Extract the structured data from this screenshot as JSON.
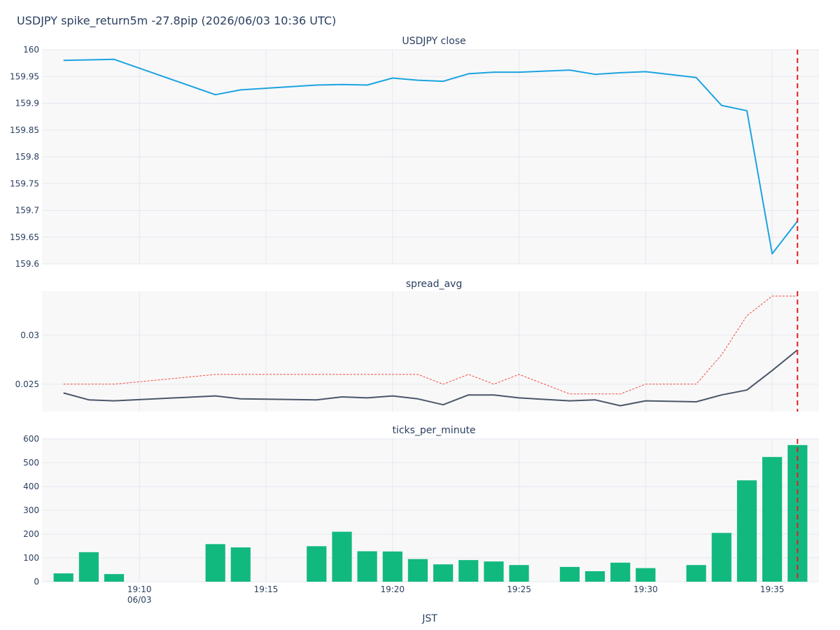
{
  "title": "USDJPY spike_return5m -27.8pip (2026/06/03 10:36 UTC)",
  "chart_data": {
    "type": "line",
    "xlabel": "JST",
    "x_minutes": [
      "19:07",
      "19:08",
      "19:09",
      "19:13",
      "19:14",
      "19:17",
      "19:18",
      "19:19",
      "19:20",
      "19:21",
      "19:22",
      "19:23",
      "19:24",
      "19:25",
      "19:27",
      "19:28",
      "19:29",
      "19:30",
      "19:32",
      "19:33",
      "19:34",
      "19:35",
      "19:36"
    ],
    "x_ticks": [
      "19:10",
      "19:15",
      "19:20",
      "19:25",
      "19:30",
      "19:35"
    ],
    "x_tick_date": "06/03",
    "event_marker_time": "19:36",
    "marker_color": "#e02020",
    "panels": [
      {
        "title": "USDJPY close",
        "type": "line",
        "ylim": [
          159.6,
          160
        ],
        "yticks": [
          "160",
          "159.95",
          "159.9",
          "159.85",
          "159.8",
          "159.75",
          "159.7",
          "159.65",
          "159.6"
        ],
        "series": [
          {
            "color": "#1ca3e0",
            "dash": "solid",
            "points": [
              [
                "19:07",
                159.98
              ],
              [
                "19:09",
                159.982
              ],
              [
                "19:13",
                159.916
              ],
              [
                "19:14",
                159.925
              ],
              [
                "19:17",
                159.934
              ],
              [
                "19:18",
                159.935
              ],
              [
                "19:19",
                159.934
              ],
              [
                "19:20",
                159.947
              ],
              [
                "19:21",
                159.943
              ],
              [
                "19:22",
                159.941
              ],
              [
                "19:23",
                159.955
              ],
              [
                "19:24",
                159.958
              ],
              [
                "19:25",
                159.958
              ],
              [
                "19:27",
                159.962
              ],
              [
                "19:28",
                159.954
              ],
              [
                "19:29",
                159.957
              ],
              [
                "19:30",
                159.959
              ],
              [
                "19:32",
                159.948
              ],
              [
                "19:33",
                159.896
              ],
              [
                "19:34",
                159.886
              ],
              [
                "19:35",
                159.619
              ],
              [
                "19:36",
                159.68
              ]
            ]
          }
        ]
      },
      {
        "title": "spread_avg",
        "type": "line",
        "ylim": [
          0.0222,
          0.0345
        ],
        "yticks": [
          "0.03",
          "0.025"
        ],
        "series": [
          {
            "color": "#4a5668",
            "dash": "solid",
            "points": [
              [
                "19:07",
                0.0241
              ],
              [
                "19:08",
                0.0234
              ],
              [
                "19:09",
                0.0233
              ],
              [
                "19:13",
                0.0238
              ],
              [
                "19:14",
                0.0235
              ],
              [
                "19:17",
                0.0234
              ],
              [
                "19:18",
                0.0237
              ],
              [
                "19:19",
                0.0236
              ],
              [
                "19:20",
                0.0238
              ],
              [
                "19:21",
                0.0235
              ],
              [
                "19:22",
                0.0229
              ],
              [
                "19:23",
                0.0239
              ],
              [
                "19:24",
                0.0239
              ],
              [
                "19:25",
                0.0236
              ],
              [
                "19:27",
                0.0233
              ],
              [
                "19:28",
                0.0234
              ],
              [
                "19:29",
                0.0228
              ],
              [
                "19:30",
                0.0233
              ],
              [
                "19:32",
                0.0232
              ],
              [
                "19:33",
                0.0239
              ],
              [
                "19:34",
                0.0244
              ],
              [
                "19:35",
                0.0264
              ],
              [
                "19:36",
                0.0285
              ]
            ]
          },
          {
            "color": "#f04a3c",
            "dash": "dotted",
            "points": [
              [
                "19:07",
                0.025
              ],
              [
                "19:09",
                0.025
              ],
              [
                "19:11",
                0.0255
              ],
              [
                "19:13",
                0.026
              ],
              [
                "19:21",
                0.026
              ],
              [
                "19:22",
                0.025
              ],
              [
                "19:23",
                0.026
              ],
              [
                "19:24",
                0.025
              ],
              [
                "19:25",
                0.026
              ],
              [
                "19:27",
                0.024
              ],
              [
                "19:29",
                0.024
              ],
              [
                "19:30",
                0.025
              ],
              [
                "19:32",
                0.025
              ],
              [
                "19:33",
                0.028
              ],
              [
                "19:34",
                0.032
              ],
              [
                "19:35",
                0.034
              ],
              [
                "19:36",
                0.034
              ]
            ]
          }
        ]
      },
      {
        "title": "ticks_per_minute",
        "type": "bar",
        "ylim": [
          0,
          600
        ],
        "yticks": [
          "600",
          "500",
          "400",
          "300",
          "200",
          "100",
          "0"
        ],
        "bar_color": "#12b97e",
        "categories": [
          "19:07",
          "19:08",
          "19:09",
          "19:13",
          "19:14",
          "19:17",
          "19:18",
          "19:19",
          "19:20",
          "19:21",
          "19:22",
          "19:23",
          "19:24",
          "19:25",
          "19:27",
          "19:28",
          "19:29",
          "19:30",
          "19:32",
          "19:33",
          "19:34",
          "19:35",
          "19:36"
        ],
        "values": [
          35,
          124,
          32,
          158,
          144,
          149,
          210,
          128,
          127,
          95,
          73,
          91,
          85,
          70,
          62,
          44,
          80,
          57,
          70,
          205,
          426,
          524,
          574
        ]
      }
    ]
  }
}
